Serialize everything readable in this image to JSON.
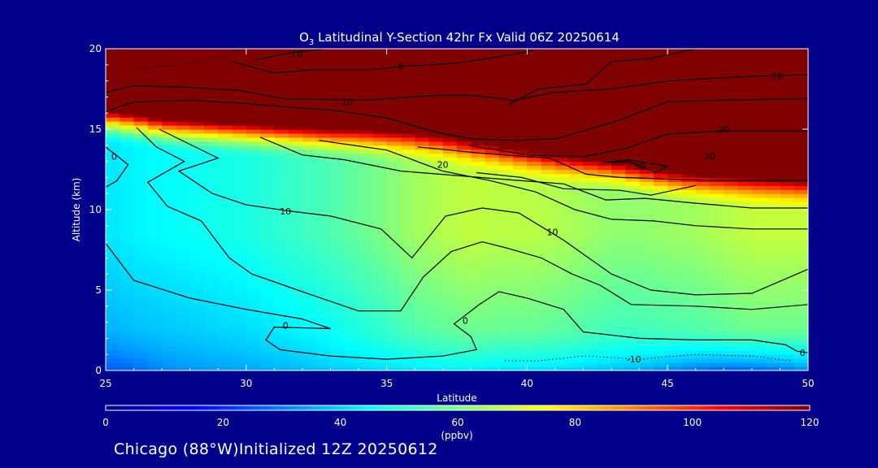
{
  "chart_data": {
    "type": "heatmap",
    "title_prefix": "O",
    "title_sub": "3",
    "title_rest": " Latitudinal Y-Section 42hr  Fx Valid 06Z 20250614",
    "xlabel": "Latitude",
    "ylabel": "Altitude (km)",
    "xlim": [
      25,
      50
    ],
    "ylim": [
      0,
      20
    ],
    "x_ticks": [
      "25",
      "30",
      "35",
      "40",
      "45",
      "50"
    ],
    "y_ticks": [
      "0",
      "5",
      "10",
      "15",
      "20"
    ],
    "colorbar": {
      "range": [
        0,
        120
      ],
      "ticks": [
        "0",
        "20",
        "40",
        "60",
        "80",
        "100",
        "120"
      ],
      "unit": "(ppbv)"
    },
    "latitudes": [
      25,
      26,
      27,
      28,
      29,
      30,
      31,
      32,
      33,
      34,
      35,
      36,
      37,
      38,
      39,
      40,
      41,
      42,
      43,
      44,
      45,
      46,
      47,
      48,
      49,
      50
    ],
    "tropopause_km": [
      15.5,
      15.3,
      15.0,
      14.9,
      14.8,
      14.7,
      14.6,
      14.5,
      14.4,
      14.4,
      14.3,
      14.2,
      14.0,
      13.7,
      13.4,
      13.1,
      12.8,
      12.6,
      12.4,
      12.1,
      11.8,
      11.6,
      11.5,
      11.4,
      11.3,
      11.2
    ],
    "background_ppbv": [
      42,
      44,
      45,
      46,
      47,
      48,
      50,
      52,
      54,
      57,
      60,
      64,
      66,
      68,
      67,
      67,
      66,
      64,
      62,
      62,
      63,
      64,
      66,
      68,
      68,
      68
    ],
    "surface_ppbv": [
      24,
      26,
      30,
      32,
      33,
      34,
      35,
      36,
      38,
      39,
      40,
      41,
      42,
      42,
      40,
      40,
      39,
      38,
      36,
      34,
      30,
      26,
      24,
      24,
      26,
      30
    ],
    "contour_labels": [
      {
        "text": "10",
        "lat": 31.8,
        "alt": 19.7
      },
      {
        "text": "0",
        "lat": 35.5,
        "alt": 18.9
      },
      {
        "text": "10",
        "lat": 33.6,
        "alt": 16.7
      },
      {
        "text": "10",
        "lat": 48.9,
        "alt": 18.3
      },
      {
        "text": "20",
        "lat": 47.0,
        "alt": 15.0
      },
      {
        "text": "30",
        "lat": 44.0,
        "alt": 12.7
      },
      {
        "text": "30",
        "lat": 46.5,
        "alt": 13.3
      },
      {
        "text": "20",
        "lat": 37.0,
        "alt": 12.8
      },
      {
        "text": "10",
        "lat": 31.4,
        "alt": 9.9
      },
      {
        "text": "10",
        "lat": 40.9,
        "alt": 8.6
      },
      {
        "text": "0",
        "lat": 31.4,
        "alt": 2.8
      },
      {
        "text": "0",
        "lat": 37.8,
        "alt": 3.1
      },
      {
        "text": "0",
        "lat": 25.3,
        "alt": 13.3
      },
      {
        "text": "0",
        "lat": 49.8,
        "alt": 1.1
      },
      {
        "text": "-10",
        "lat": 43.8,
        "alt": 0.7
      }
    ],
    "contours": [
      {
        "level": "0",
        "points": [
          [
            25,
            13.9
          ],
          [
            25.8,
            12.8
          ],
          [
            25.4,
            11.8
          ],
          [
            25.0,
            11.4
          ]
        ]
      },
      {
        "level": "0",
        "points": [
          [
            25,
            7.9
          ],
          [
            26,
            5.6
          ],
          [
            28,
            4.5
          ],
          [
            30,
            3.8
          ],
          [
            32,
            3.2
          ],
          [
            33,
            2.6
          ],
          [
            31,
            2.7
          ],
          [
            30.7,
            1.9
          ],
          [
            31.2,
            1.3
          ],
          [
            33,
            0.9
          ],
          [
            35,
            0.7
          ],
          [
            36,
            0.8
          ],
          [
            37,
            0.9
          ],
          [
            38.2,
            1.3
          ],
          [
            38.0,
            2.1
          ],
          [
            37.4,
            2.9
          ],
          [
            37.7,
            3.3
          ],
          [
            38.3,
            4.1
          ],
          [
            39,
            4.9
          ],
          [
            40,
            4.5
          ],
          [
            41.3,
            3.8
          ],
          [
            42,
            2.4
          ],
          [
            44,
            2.0
          ],
          [
            46,
            1.9
          ],
          [
            48,
            1.9
          ],
          [
            49.2,
            1.6
          ],
          [
            49.6,
            1.2
          ],
          [
            50,
            1.1
          ]
        ]
      },
      {
        "level": "10",
        "points": [
          [
            26.1,
            15.1
          ],
          [
            26.8,
            13.9
          ],
          [
            27.8,
            13.0
          ],
          [
            26.5,
            11.7
          ],
          [
            27.2,
            10.2
          ],
          [
            28.4,
            9.3
          ],
          [
            29.4,
            7.0
          ],
          [
            30.2,
            6.0
          ],
          [
            32,
            4.9
          ],
          [
            34,
            3.7
          ],
          [
            35.5,
            3.7
          ],
          [
            36.3,
            5.8
          ],
          [
            37.3,
            7.4
          ],
          [
            38.4,
            8.0
          ],
          [
            39.3,
            7.6
          ],
          [
            40.5,
            7.0
          ],
          [
            41.6,
            6.0
          ],
          [
            42.6,
            5.3
          ],
          [
            43.7,
            4.1
          ],
          [
            46,
            4.0
          ],
          [
            48,
            3.8
          ],
          [
            50,
            4.1
          ]
        ]
      },
      {
        "level": "10",
        "points": [
          [
            26.9,
            15.0
          ],
          [
            29.0,
            13.2
          ],
          [
            27.6,
            12.4
          ],
          [
            28.8,
            11.0
          ],
          [
            30,
            10.3
          ],
          [
            31.6,
            9.9
          ],
          [
            33,
            9.6
          ],
          [
            34.8,
            8.8
          ],
          [
            35.9,
            7.0
          ],
          [
            37.1,
            9.6
          ],
          [
            38.4,
            10.1
          ],
          [
            39.7,
            9.8
          ],
          [
            41.3,
            8.1
          ],
          [
            43.0,
            6.0
          ],
          [
            44.4,
            5.0
          ],
          [
            46,
            4.7
          ],
          [
            48,
            4.8
          ],
          [
            50,
            6.3
          ]
        ]
      },
      {
        "level": "10",
        "points": [
          [
            32.6,
            14.3
          ],
          [
            35,
            13.7
          ],
          [
            37,
            12.4
          ],
          [
            38.7,
            11.8
          ],
          [
            40.3,
            11.1
          ],
          [
            41.7,
            10.0
          ],
          [
            43.0,
            9.4
          ],
          [
            44.5,
            9.3
          ],
          [
            46,
            9.0
          ],
          [
            48,
            8.8
          ],
          [
            50,
            8.8
          ]
        ]
      },
      {
        "level": "20",
        "points": [
          [
            30.5,
            14.5
          ],
          [
            32,
            13.4
          ],
          [
            33.5,
            13.1
          ],
          [
            35.5,
            12.4
          ],
          [
            37.6,
            12.1
          ],
          [
            39.8,
            11.8
          ],
          [
            41.3,
            11.6
          ],
          [
            42.8,
            10.6
          ],
          [
            44.2,
            10.7
          ],
          [
            46,
            10.4
          ],
          [
            48,
            10.1
          ],
          [
            50,
            10.1
          ]
        ]
      },
      {
        "level": "20",
        "points": [
          [
            36.1,
            13.9
          ],
          [
            38.4,
            13.5
          ],
          [
            40.8,
            13.2
          ],
          [
            42.1,
            12.2
          ],
          [
            43.3,
            12.0
          ],
          [
            45,
            11.9
          ],
          [
            47,
            11.8
          ],
          [
            50,
            11.8
          ]
        ]
      },
      {
        "level": "30",
        "points": [
          [
            38.2,
            12.3
          ],
          [
            39.8,
            12.0
          ],
          [
            41.3,
            11.3
          ],
          [
            43.3,
            11.2
          ],
          [
            44.4,
            10.9
          ],
          [
            46,
            11.5
          ]
        ]
      },
      {
        "level": "30",
        "points": [
          [
            42.7,
            12.9
          ],
          [
            43.6,
            13.0
          ],
          [
            44.6,
            12.3
          ],
          [
            45.0,
            12.7
          ],
          [
            43.6,
            13.1
          ],
          [
            42.7,
            12.9
          ]
        ]
      },
      {
        "level": "20",
        "points": [
          [
            37.9,
            14.0
          ],
          [
            40,
            13.4
          ],
          [
            42,
            13.3
          ],
          [
            43.5,
            13.8
          ],
          [
            45,
            14.7
          ],
          [
            47,
            14.9
          ],
          [
            50,
            14.9
          ]
        ]
      },
      {
        "level": "20",
        "points": [
          [
            25,
            16.1
          ],
          [
            26,
            16.7
          ],
          [
            28,
            16.8
          ],
          [
            30,
            16.6
          ],
          [
            32,
            16.3
          ],
          [
            33,
            16.2
          ],
          [
            35,
            15.7
          ],
          [
            36.8,
            14.8
          ],
          [
            38,
            14.4
          ],
          [
            39.5,
            14.3
          ],
          [
            41,
            14.4
          ],
          [
            43,
            15.4
          ],
          [
            45,
            16.7
          ],
          [
            47,
            16.8
          ],
          [
            50,
            16.9
          ]
        ]
      },
      {
        "level": "10",
        "points": [
          [
            25,
            17.3
          ],
          [
            26,
            17.7
          ],
          [
            28,
            17.6
          ],
          [
            29.8,
            17.4
          ],
          [
            31.3,
            16.9
          ],
          [
            34.2,
            16.8
          ],
          [
            36.8,
            17.1
          ],
          [
            38,
            17.1
          ],
          [
            39.5,
            16.8
          ],
          [
            41,
            17.3
          ],
          [
            43,
            17.5
          ],
          [
            45,
            18.0
          ],
          [
            47,
            18.2
          ],
          [
            48.3,
            18.3
          ],
          [
            50,
            18.4
          ]
        ]
      },
      {
        "level": "0",
        "points": [
          [
            29.5,
            19.2
          ],
          [
            31,
            18.5
          ],
          [
            32.5,
            18.7
          ],
          [
            34.5,
            18.7
          ],
          [
            35.5,
            18.9
          ],
          [
            37.5,
            19.1
          ],
          [
            39,
            19.5
          ],
          [
            40.2,
            19.9
          ]
        ]
      },
      {
        "level": "10",
        "points": [
          [
            39.3,
            16.5
          ],
          [
            40.4,
            17.5
          ],
          [
            42.1,
            17.8
          ],
          [
            43,
            19.2
          ],
          [
            44.4,
            19.4
          ],
          [
            46,
            20.0
          ]
        ]
      },
      {
        "level": "10",
        "points": [
          [
            30.3,
            19.3
          ],
          [
            31.4,
            19.7
          ],
          [
            32.8,
            20.0
          ]
        ]
      }
    ],
    "dotted_contours": [
      {
        "level": "-10",
        "points": [
          [
            30.0,
            20.0
          ],
          [
            29.1,
            19.6
          ],
          [
            28.4,
            19.2
          ],
          [
            27.5,
            19.0
          ],
          [
            26.2,
            18.8
          ]
        ]
      },
      {
        "level": "-10",
        "points": [
          [
            39.2,
            0.6
          ],
          [
            40.4,
            0.6
          ],
          [
            42,
            0.9
          ],
          [
            44,
            0.7
          ],
          [
            46,
            1.0
          ],
          [
            48,
            0.9
          ],
          [
            49.4,
            0.6
          ]
        ]
      }
    ]
  },
  "footer_text": "Chicago (88°W)Initialized 12Z 20250612"
}
